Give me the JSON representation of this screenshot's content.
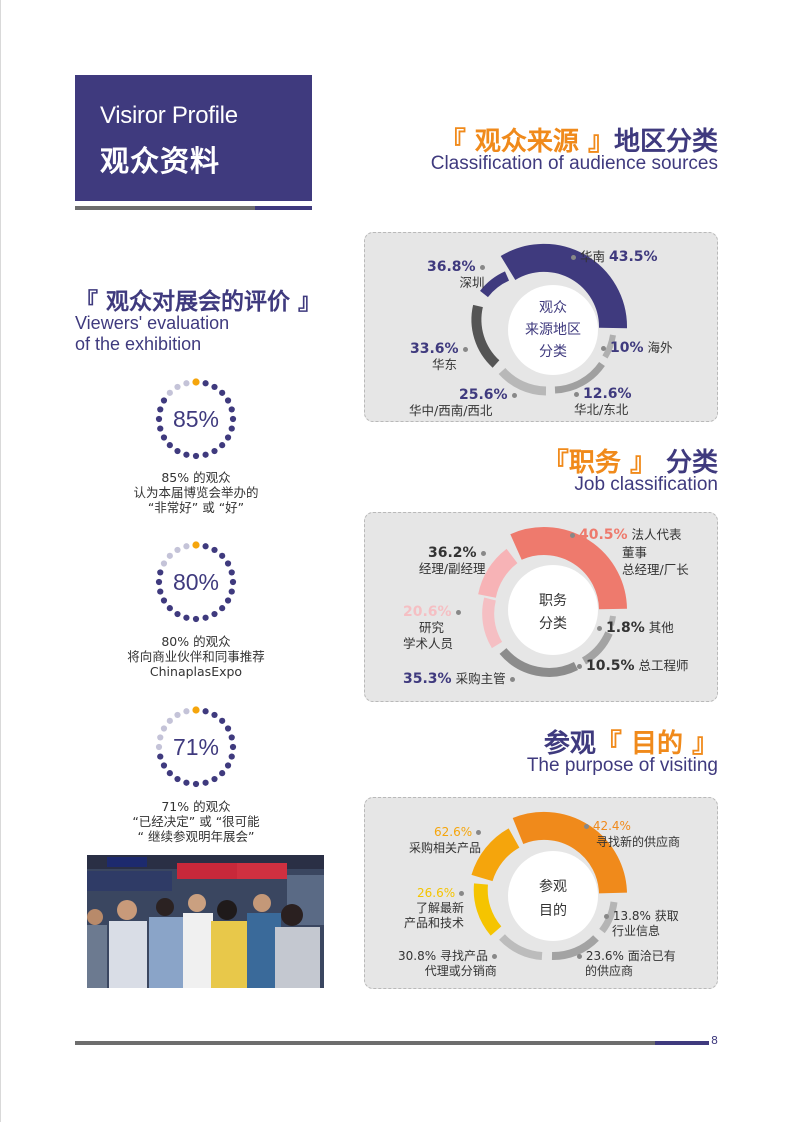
{
  "header": {
    "en": "Visiror Profile",
    "cn": "观众资料"
  },
  "source_section": {
    "title_bracket": "『 观众来源 』",
    "title_rest": "地区分类",
    "subtitle": "Classification of audience sources"
  },
  "source_chart": {
    "center": [
      "观众",
      "来源地区",
      "分类"
    ],
    "labels": [
      {
        "pct": "43.5%",
        "name": "华南"
      },
      {
        "pct": "36.8%",
        "name": "深圳"
      },
      {
        "pct": "33.6%",
        "name": "华东"
      },
      {
        "pct": "10%",
        "name": "海外"
      },
      {
        "pct": "25.6%",
        "name": "华中/西南/西北"
      },
      {
        "pct": "12.6%",
        "name": "华北/东北"
      }
    ]
  },
  "job_section": {
    "title_bracket": "『职务 』",
    "title_rest": "分类",
    "subtitle": "Job classification"
  },
  "job_chart": {
    "center": [
      "职务",
      "分类"
    ],
    "labels": [
      {
        "pct": "40.5%",
        "name": "法人代表",
        "extra": [
          "董事",
          "总经理/厂长"
        ]
      },
      {
        "pct": "36.2%",
        "name": "经理/副经理"
      },
      {
        "pct": "20.6%",
        "name": "研究",
        "extra": [
          "学术人员"
        ]
      },
      {
        "pct": "1.8%",
        "name": "其他"
      },
      {
        "pct": "10.5%",
        "name": "总工程师"
      },
      {
        "pct": "35.3%",
        "name": "采购主管"
      }
    ]
  },
  "purpose_section": {
    "title_plain": "参观",
    "title_bracket": "『 目的 』",
    "subtitle": "The purpose of visiting"
  },
  "purpose_chart": {
    "center": [
      "参观",
      "目的"
    ],
    "labels": [
      {
        "pct": "42.4%",
        "name": "寻找新的供应商"
      },
      {
        "pct": "62.6%",
        "name": "采购相关产品"
      },
      {
        "pct": "26.6%",
        "name": "了解最新",
        "extra": [
          "产品和技术"
        ]
      },
      {
        "pct": "13.8%",
        "name": "获取",
        "extra": [
          "行业信息"
        ]
      },
      {
        "pct": "30.8%",
        "name": "寻找产品",
        "extra": [
          "代理或分销商"
        ]
      },
      {
        "pct": "23.6%",
        "name": "面洽已有",
        "extra": [
          "的供应商"
        ]
      }
    ]
  },
  "evaluation": {
    "title": "『 观众对展会的评价 』",
    "subtitle": [
      "Viewers' evaluation",
      "of the exhibition"
    ],
    "items": [
      {
        "value": "85%",
        "fraction": 0.85,
        "caption": [
          "85% 的观众",
          "认为本届博览会举办的",
          "“非常好” 或 “好”"
        ]
      },
      {
        "value": "80%",
        "fraction": 0.8,
        "caption": [
          "80% 的观众",
          "将向商业伙伴和同事推荐",
          "ChinaplasExpo"
        ]
      },
      {
        "value": "71%",
        "fraction": 0.71,
        "caption": [
          "71% 的观众",
          "“已经决定” 或 “很可能",
          "“ 继续参观明年展会”"
        ]
      }
    ]
  },
  "footer": {
    "page": "8"
  },
  "colors": {
    "navy": "#3f3a7e",
    "orange": "#f08a1b",
    "salmon": "#ee7a6d",
    "gold": "#f5a50c",
    "yellow": "#f5c400",
    "gray": "#6d6d6d"
  }
}
